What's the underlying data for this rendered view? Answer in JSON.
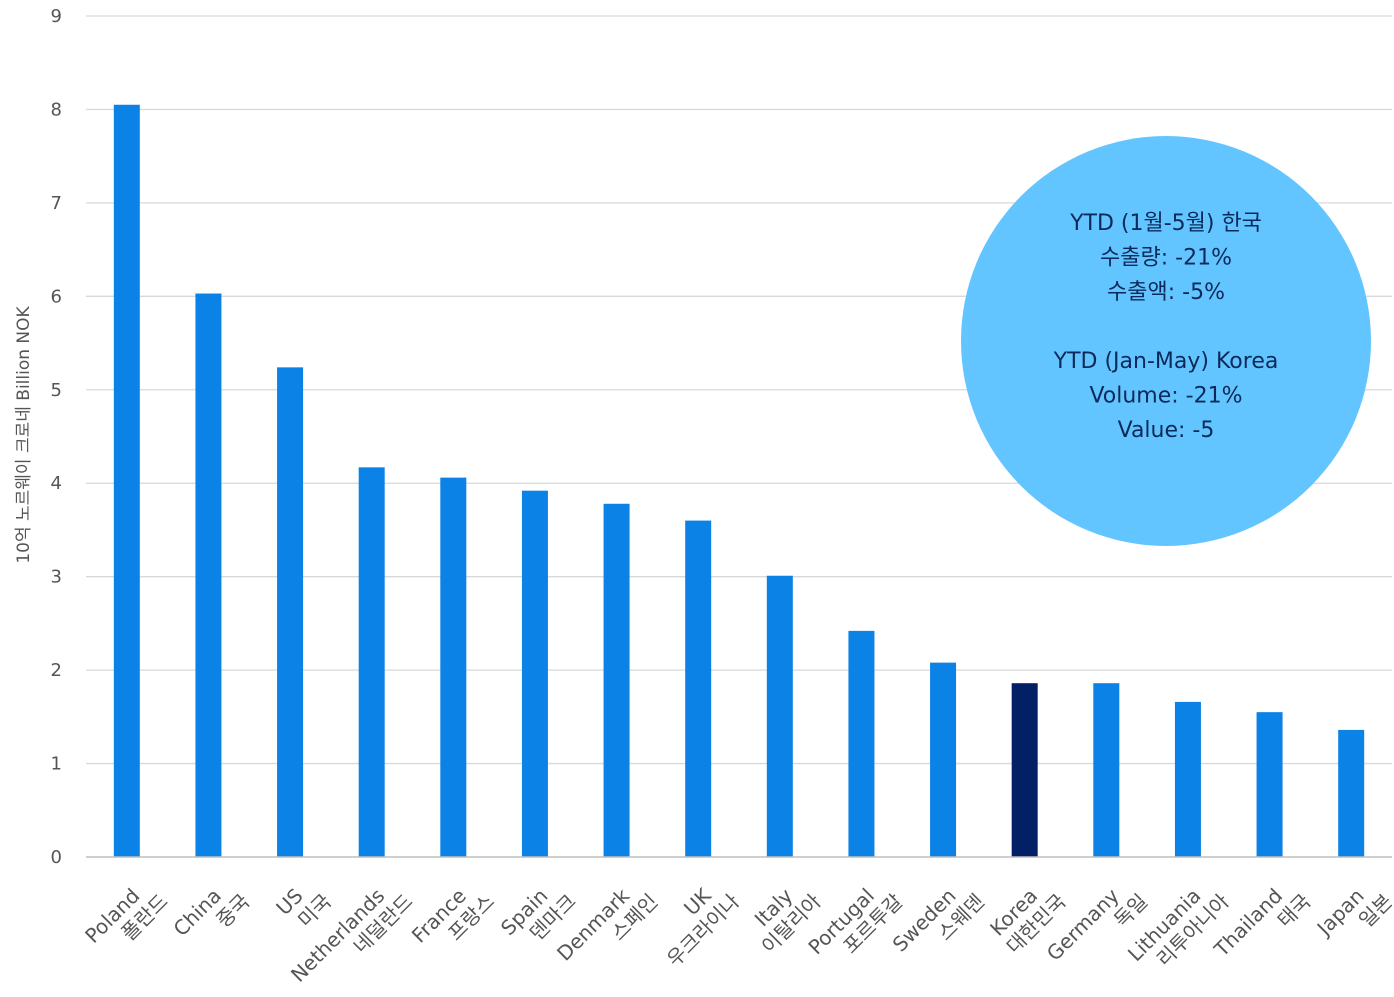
{
  "chart_data": {
    "type": "bar",
    "ylabel": "10억 노르웨이 크로네 Billion NOK",
    "ylim": [
      0,
      9
    ],
    "yticks": [
      0,
      1,
      2,
      3,
      4,
      5,
      6,
      7,
      8,
      9
    ],
    "grid": true,
    "categories": [
      {
        "en": "Poland",
        "ko": "폴란드"
      },
      {
        "en": "China",
        "ko": "중국"
      },
      {
        "en": "US",
        "ko": "미국"
      },
      {
        "en": "Netherlands",
        "ko": "네덜란드"
      },
      {
        "en": "France",
        "ko": "프랑스"
      },
      {
        "en": "Spain",
        "ko": "덴마크"
      },
      {
        "en": "Denmark",
        "ko": "스페인"
      },
      {
        "en": "UK",
        "ko": "우크라이나"
      },
      {
        "en": "Italy",
        "ko": "이탈리아"
      },
      {
        "en": "Portugal",
        "ko": "포르투갈"
      },
      {
        "en": "Sweden",
        "ko": "스웨덴"
      },
      {
        "en": "Korea",
        "ko": "대한민국"
      },
      {
        "en": "Germany",
        "ko": "독일"
      },
      {
        "en": "Lithuania",
        "ko": "리투아니아"
      },
      {
        "en": "Thailand",
        "ko": "태국"
      },
      {
        "en": "Japan",
        "ko": "일본"
      }
    ],
    "values": [
      8.05,
      6.03,
      5.24,
      4.17,
      4.06,
      3.92,
      3.78,
      3.6,
      3.01,
      2.42,
      2.08,
      1.86,
      1.86,
      1.66,
      1.55,
      1.36
    ],
    "highlight": "Korea",
    "colors": {
      "bar": "#0a82e6",
      "highlight": "#031f66",
      "bubble": "#63c5ff",
      "grid": "#d9d9d9",
      "axis": "#bfbfbf"
    }
  },
  "callout": {
    "lines": [
      "YTD (1월-5월) 한국",
      "수출량: -21%",
      "수출액: -5%",
      "",
      "YTD (Jan-May) Korea",
      "Volume: -21%",
      "Value: -5"
    ]
  }
}
